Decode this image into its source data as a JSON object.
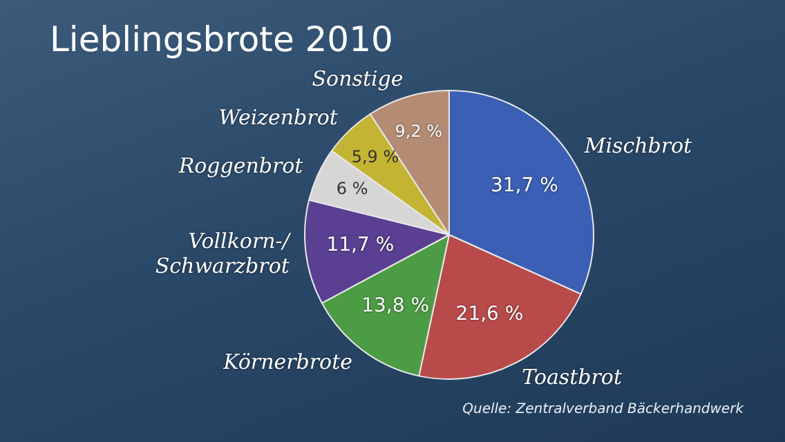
{
  "chart_data": {
    "type": "pie",
    "title": "Lieblingsbrote 2010",
    "categories": [
      "Mischbrot",
      "Toastbrot",
      "Körnerbrote",
      "Vollkorn-/\nSchwarzbrot",
      "Roggenbrot",
      "Weizenbrot",
      "Sonstige"
    ],
    "values": [
      31.7,
      21.6,
      13.8,
      11.7,
      6,
      5.9,
      9.2
    ],
    "value_labels": [
      "31,7 %",
      "21,6 %",
      "13,8 %",
      "11,7 %",
      "6 %",
      "5,9 %",
      "9,2 %"
    ],
    "colors": [
      "#3a5fb4",
      "#b84a4a",
      "#4c9c45",
      "#5a3f92",
      "#d6d6d6",
      "#c4b434",
      "#b48c74"
    ],
    "annotations": [
      "Quelle: Zentralverband Bäckerhandwerk"
    ],
    "legend": false
  }
}
